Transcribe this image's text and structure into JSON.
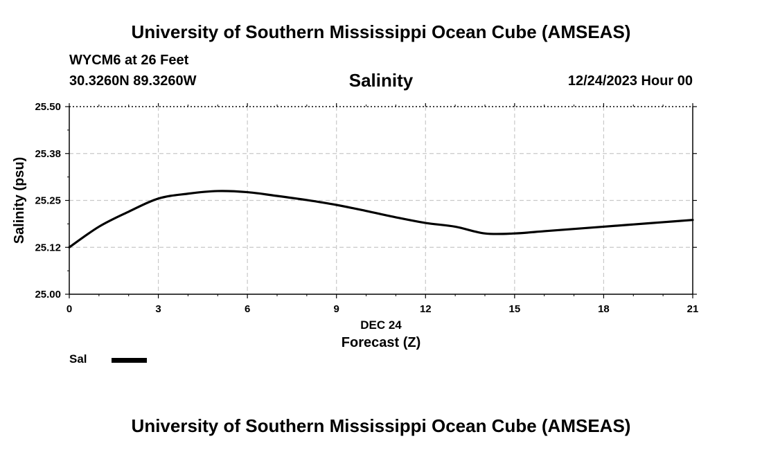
{
  "header": {
    "title_top": "University of Southern Mississippi Ocean Cube (AMSEAS)",
    "station": "WYCM6 at 26 Feet",
    "coords": "30.3260N  89.3260W",
    "datetime": "12/24/2023 Hour 00",
    "title_bottom": "University of Southern Mississippi Ocean Cube (AMSEAS)"
  },
  "legend": {
    "label": "Sal"
  },
  "chart_data": {
    "type": "line",
    "title": "Salinity",
    "xlabel": "Forecast (Z)",
    "xlabel_date": "DEC 24",
    "ylabel": "Salinity (psu)",
    "xlim": [
      0,
      21
    ],
    "ylim": [
      25.0,
      25.5
    ],
    "x_ticks": [
      0,
      3,
      6,
      9,
      12,
      15,
      18,
      21
    ],
    "x_tick_labels": [
      "0",
      "3",
      "6",
      "9",
      "12",
      "15",
      "18",
      "21"
    ],
    "y_ticks": [
      25.0,
      25.125,
      25.25,
      25.375,
      25.5
    ],
    "y_tick_labels": [
      "25.00",
      "25.12",
      "25.25",
      "25.38",
      "25.50"
    ],
    "grid": true,
    "series": [
      {
        "name": "Sal",
        "x": [
          0,
          1,
          2,
          3,
          4,
          5,
          6,
          7,
          8,
          9,
          10,
          11,
          12,
          13,
          14,
          15,
          16,
          17,
          18,
          19,
          20,
          21
        ],
        "values": [
          25.125,
          25.18,
          25.22,
          25.255,
          25.268,
          25.275,
          25.272,
          25.262,
          25.251,
          25.238,
          25.222,
          25.205,
          25.19,
          25.18,
          25.162,
          25.162,
          25.168,
          25.174,
          25.18,
          25.186,
          25.192,
          25.198
        ]
      }
    ]
  }
}
